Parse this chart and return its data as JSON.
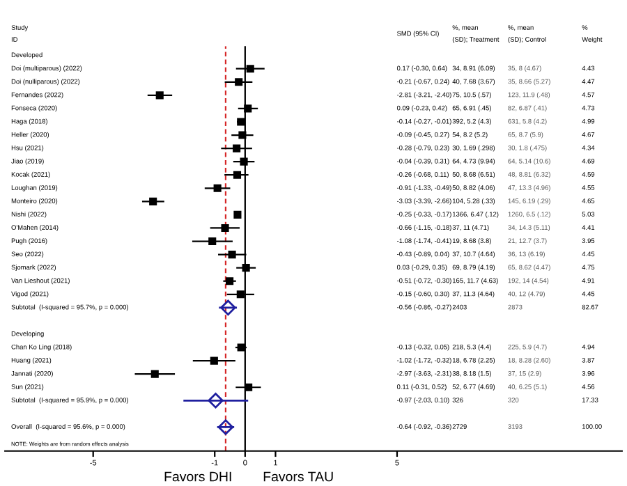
{
  "chart_data": {
    "type": "scatter",
    "orientation": "horizontal",
    "categories": [
      "Developed",
      "Doi (multiparous) (2022)",
      "Doi (nulliparous) (2022)",
      "Fernandes (2022)",
      "Fonseca (2020)",
      "Haga (2018)",
      "Heller (2020)",
      "Hsu (2021)",
      "Jiao (2019)",
      "Kocak (2021)",
      "Loughan (2019)",
      "Monteiro (2020)",
      "Nishi (2022)",
      "O'Mahen (2014)",
      "Pugh (2016)",
      "Seo (2022)",
      "Sjomark (2022)",
      "Van Lieshout (2021)",
      "Vigod (2021)",
      "Subtotal  (I-squared = 95.7%, p = 0.000)",
      null,
      "Developing",
      "Chan Ko Ling (2018)",
      "Huang (2021)",
      "Jannati (2020)",
      "Sun (2021)",
      "Subtotal  (I-squared = 95.9%, p = 0.000)",
      null,
      "Overall  (I-squared = 95.6%, p = 0.000)"
    ],
    "series": [
      {
        "type": "scatter",
        "marker": "square",
        "color": "#000000",
        "values": [
          null,
          0.17,
          -0.21,
          -2.81,
          0.09,
          -0.14,
          -0.09,
          -0.28,
          -0.04,
          -0.26,
          -0.91,
          -3.03,
          -0.25,
          -0.66,
          -1.08,
          -0.43,
          0.03,
          -0.51,
          -0.15,
          null,
          null,
          null,
          -0.13,
          -1.02,
          -2.97,
          0.11,
          null,
          null,
          null
        ],
        "errors": [
          null,
          [
            -0.3,
            0.64
          ],
          [
            -0.67,
            0.24
          ],
          [
            -3.21,
            -2.4
          ],
          [
            -0.23,
            0.42
          ],
          [
            -0.27,
            -0.01
          ],
          [
            -0.45,
            0.27
          ],
          [
            -0.79,
            0.23
          ],
          [
            -0.39,
            0.31
          ],
          [
            -0.68,
            0.11
          ],
          [
            -1.33,
            -0.49
          ],
          [
            -3.39,
            -2.66
          ],
          [
            -0.33,
            -0.17
          ],
          [
            -1.15,
            -0.18
          ],
          [
            -1.74,
            -0.41
          ],
          [
            -0.89,
            0.04
          ],
          [
            -0.29,
            0.35
          ],
          [
            -0.72,
            -0.3
          ],
          [
            -0.6,
            0.3
          ],
          null,
          null,
          null,
          [
            -0.32,
            0.05
          ],
          [
            -1.72,
            -0.32
          ],
          [
            -3.63,
            -2.31
          ],
          [
            -0.31,
            0.52
          ],
          null,
          null,
          null
        ]
      },
      {
        "type": "scatter",
        "marker": "diamond",
        "color": "#1f1f9f",
        "values": [
          null,
          null,
          null,
          null,
          null,
          null,
          null,
          null,
          null,
          null,
          null,
          null,
          null,
          null,
          null,
          null,
          null,
          null,
          null,
          -0.56,
          null,
          null,
          null,
          null,
          null,
          null,
          -0.97,
          null,
          -0.64
        ],
        "errors": [
          null,
          null,
          null,
          null,
          null,
          null,
          null,
          null,
          null,
          null,
          null,
          null,
          null,
          null,
          null,
          null,
          null,
          null,
          null,
          [
            -0.86,
            -0.27
          ],
          null,
          null,
          null,
          null,
          null,
          null,
          [
            -2.03,
            0.1
          ],
          null,
          [
            -0.92,
            -0.36
          ]
        ]
      }
    ],
    "xlim": [
      -7.9,
      12.4
    ],
    "xticks": [
      -5,
      -1,
      0,
      1,
      5
    ],
    "ref_lines": [
      {
        "axis": "x",
        "value": -0.64,
        "color": "#d62728",
        "line_style": "dashed"
      },
      {
        "axis": "x",
        "value": 0,
        "color": "#000000",
        "line_style": "solid"
      }
    ],
    "grid": false,
    "legend": false,
    "annotations": [
      "Study\nID",
      "SMD (95% CI)",
      "%, mean\n(SD); Treatment",
      "%, mean\n(SD); Control",
      "%\nWeight",
      "NOTE: Weights are from random effects analysis",
      "Favors DHI",
      "Favors TAU",
      "0.17 (-0.30, 0.64)",
      "34, 8.91 (6.09)",
      "35, 8 (4.67)",
      "4.43",
      "-0.21 (-0.67, 0.24)",
      "40, 7.68 (3.67)",
      "35, 8.66 (5.27)",
      "4.47",
      "-2.81 (-3.21, -2.40)",
      "75, 10.5 (.57)",
      "123, 11.9 (.48)",
      "4.57",
      "0.09 (-0.23, 0.42)",
      "65, 6.91 (.45)",
      "82, 6.87 (.41)",
      "4.73",
      "-0.14 (-0.27, -0.01)",
      "392, 5.2 (4.3)",
      "631, 5.8 (4.2)",
      "4.99",
      "-0.09 (-0.45, 0.27)",
      "54, 8.2 (5.2)",
      "65, 8.7 (5.9)",
      "4.67",
      "-0.28 (-0.79, 0.23)",
      "30, 1.69 (.298)",
      "30, 1.8 (.475)",
      "4.34",
      "-0.04 (-0.39, 0.31)",
      "64, 4.73 (9.94)",
      "64, 5.14 (10.6)",
      "4.69",
      "-0.26 (-0.68, 0.11)",
      "50, 8.68 (6.51)",
      "48, 8.81 (6.32)",
      "4.59",
      "-0.91 (-1.33, -0.49)",
      "50, 8.82 (4.06)",
      "47, 13.3 (4.96)",
      "4.55",
      "-3.03 (-3.39, -2.66)",
      "104, 5.28 (.33)",
      "145, 6.19 (.29)",
      "4.65",
      "-0.25 (-0.33, -0.17)",
      "1366, 6.47 (.12)",
      "1260, 6.5 (.12)",
      "5.03",
      "-0.66 (-1.15, -0.18)",
      "37, 11 (4.71)",
      "34, 14.3 (5.11)",
      "4.41",
      "-1.08 (-1.74, -0.41)",
      "19, 8.68 (3.8)",
      "21, 12.7 (3.7)",
      "3.95",
      "-0.43 (-0.89, 0.04)",
      "37, 10.7 (4.64)",
      "36, 13 (6.19)",
      "4.45",
      "0.03 (-0.29, 0.35)",
      "69, 8.79 (4.19)",
      "65, 8.62 (4.47)",
      "4.75",
      "-0.51 (-0.72, -0.30)",
      "165, 11.7 (4.63)",
      "192, 14 (4.54)",
      "4.91",
      "-0.15 (-0.60, 0.30)",
      "37, 11.3 (4.64)",
      "40, 12 (4.79)",
      "4.45",
      "-0.56 (-0.86, -0.27)",
      "2403",
      "2873",
      "82.67",
      "-0.13 (-0.32, 0.05)",
      "218, 5.3 (4.4)",
      "225, 5.9 (4.7)",
      "4.94",
      "-1.02 (-1.72, -0.32)",
      "18, 6.78 (2.25)",
      "18, 8.28 (2.60)",
      "3.87",
      "-2.97 (-3.63, -2.31)",
      "38, 8.18 (1.5)",
      "37, 15 (2.9)",
      "3.96",
      "0.11 (-0.31, 0.52)",
      "52, 6.77 (4.69)",
      "40, 6.25 (5.1)",
      "4.56",
      "-0.97 (-2.03, 0.10)",
      "326",
      "320",
      "17.33",
      "-0.64 (-0.92, -0.36)",
      "2729",
      "3193",
      "100.00"
    ]
  }
}
